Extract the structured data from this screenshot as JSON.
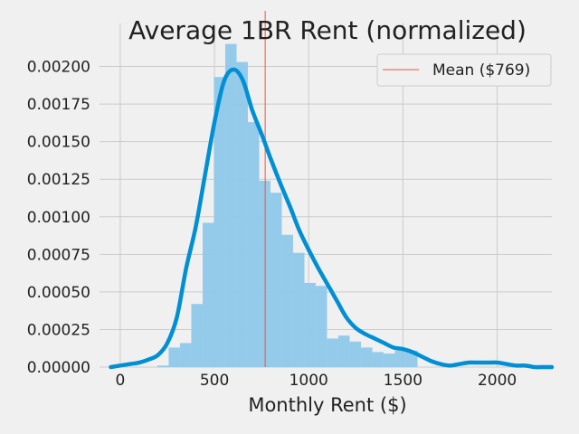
{
  "chart_data": {
    "type": "histogram",
    "title": "Average 1BR Rent (normalized)",
    "xlabel": "Monthly Rent ($)",
    "ylabel": "",
    "xlim": [
      -110,
      2290
    ],
    "ylim": [
      0,
      0.00225
    ],
    "x_ticks": [
      0,
      500,
      1000,
      1500,
      2000
    ],
    "x_tick_labels": [
      "0",
      "500",
      "1000",
      "1500",
      "2000"
    ],
    "y_ticks": [
      0,
      0.00025,
      0.0005,
      0.00075,
      0.001,
      0.00125,
      0.0015,
      0.00175,
      0.002
    ],
    "y_tick_labels": [
      "0.00000",
      "0.00025",
      "0.00050",
      "0.00075",
      "0.00100",
      "0.00125",
      "0.00150",
      "0.00175",
      "0.00200"
    ],
    "grid": true,
    "colors": {
      "histogram": "#8ec8ea",
      "kde": "#008fd5",
      "mean_line": "#fc4f30",
      "background": "#f0f0f0",
      "grid": "#cbcbcb"
    },
    "histogram": {
      "bin_edges": [
        197,
        257,
        317,
        377,
        437,
        497,
        557,
        617,
        677,
        737,
        797,
        857,
        917,
        977,
        1037,
        1097,
        1157,
        1217,
        1277,
        1337,
        1397,
        1457,
        1517,
        1577,
        1637
      ],
      "densities": [
        1e-05,
        0.00013,
        0.00016,
        0.00042,
        0.00096,
        0.00193,
        0.00215,
        0.00203,
        0.00163,
        0.00124,
        0.00116,
        0.00088,
        0.00076,
        0.00056,
        0.00054,
        0.00019,
        0.00021,
        0.00017,
        0.00013,
        0.0001,
        9e-05,
        0.00011,
        0.00011,
        0.0,
        0.0
      ]
    },
    "kde": {
      "x": [
        -50,
        0,
        50,
        100,
        150,
        200,
        250,
        300,
        350,
        400,
        450,
        500,
        550,
        600,
        650,
        700,
        750,
        800,
        850,
        900,
        950,
        1000,
        1050,
        1100,
        1150,
        1200,
        1250,
        1300,
        1350,
        1400,
        1450,
        1500,
        1550,
        1600,
        1650,
        1700,
        1750,
        1800,
        1850,
        1900,
        1950,
        2000,
        2050,
        2100,
        2150,
        2200,
        2250,
        2290
      ],
      "y": [
        0.0,
        1e-05,
        2e-05,
        3e-05,
        5e-05,
        8e-05,
        0.00016,
        0.00033,
        0.00066,
        0.00093,
        0.00128,
        0.00163,
        0.0019,
        0.00198,
        0.00191,
        0.00171,
        0.00155,
        0.00138,
        0.00122,
        0.00107,
        0.00091,
        0.00078,
        0.00066,
        0.00055,
        0.00044,
        0.00033,
        0.00026,
        0.00022,
        0.00019,
        0.00016,
        0.00013,
        0.00012,
        0.0001,
        7e-05,
        4e-05,
        2e-05,
        1e-05,
        2e-05,
        3e-05,
        3e-05,
        3e-05,
        3e-05,
        2e-05,
        1e-05,
        1e-05,
        0.0,
        0.0,
        0.0
      ]
    },
    "mean": {
      "value": 769,
      "legend_label": "Mean ($769)"
    },
    "legend_position": "top-right"
  }
}
